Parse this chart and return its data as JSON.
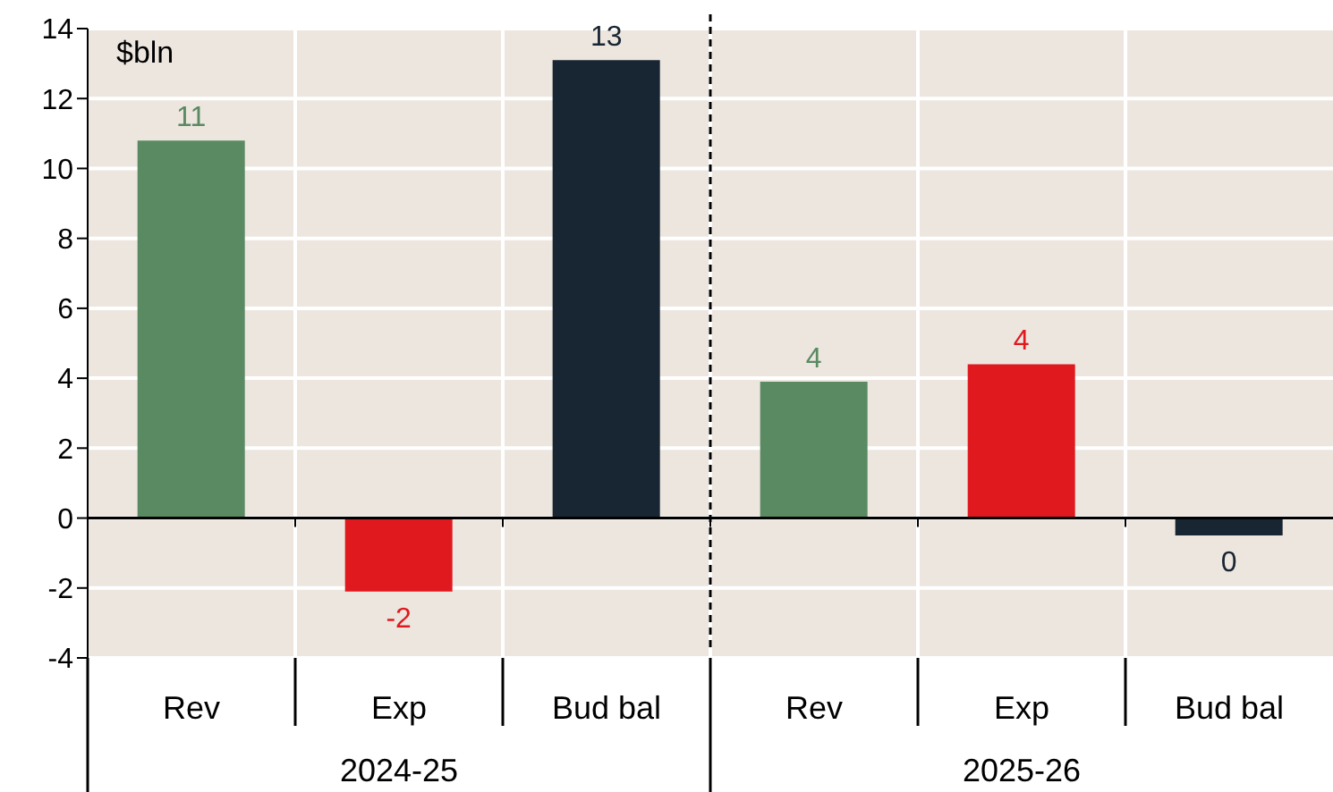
{
  "chart_data": {
    "type": "bar",
    "ylabel": "$bln",
    "categories": [
      "Rev",
      "Exp",
      "Bud bal",
      "Rev",
      "Exp",
      "Bud bal"
    ],
    "values": [
      10.8,
      -2.1,
      13.1,
      3.9,
      4.4,
      -0.5
    ],
    "colors": [
      "#5a8a62",
      "#e0191f",
      "#182532",
      "#5a8a62",
      "#e0191f",
      "#182532"
    ],
    "value_labels": [
      "11",
      "-2",
      "13",
      "4",
      "4",
      "0"
    ],
    "annotations": [
      "2024-25",
      "2025-26"
    ],
    "ylim": [
      -4,
      14
    ],
    "yticks": [
      -4,
      -2,
      0,
      2,
      4,
      6,
      8,
      10,
      12,
      14
    ],
    "grid": true
  }
}
